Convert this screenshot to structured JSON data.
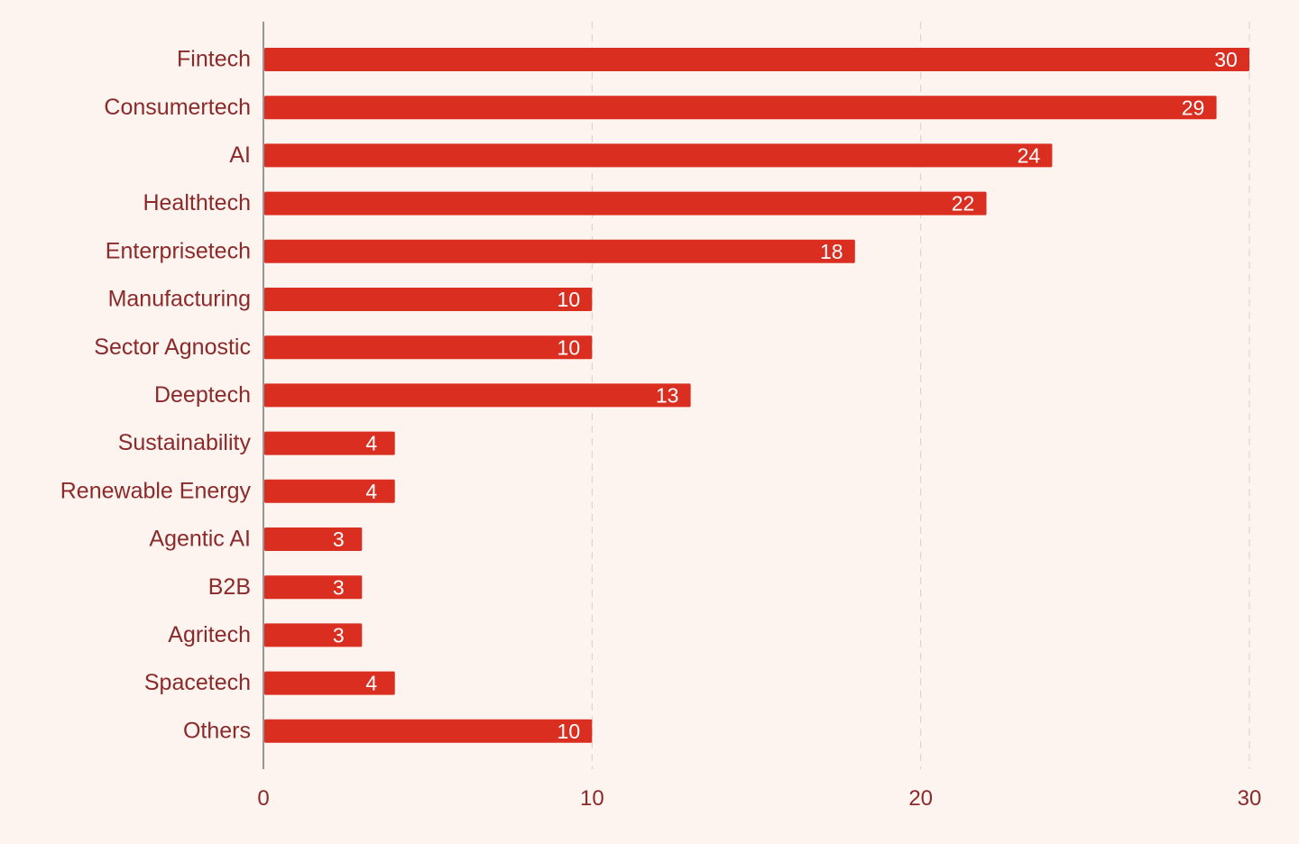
{
  "chart_data": {
    "type": "bar",
    "orientation": "horizontal",
    "categories": [
      "Fintech",
      "Consumertech",
      "AI",
      "Healthtech",
      "Enterprisetech",
      "Manufacturing",
      "Sector Agnostic",
      "Deeptech",
      "Sustainability",
      "Renewable Energy",
      "Agentic AI",
      "B2B",
      "Agritech",
      "Spacetech",
      "Others"
    ],
    "values": [
      30,
      29,
      24,
      22,
      18,
      10,
      10,
      13,
      4,
      4,
      3,
      3,
      3,
      4,
      10
    ],
    "xticks": [
      0,
      10,
      20,
      30
    ],
    "xlim": [
      0,
      30
    ],
    "title": "",
    "xlabel": "",
    "ylabel": "",
    "grid": true,
    "bar_color": "#d92e20",
    "label_color": "#8a2a2a",
    "value_label_color": "#ffffff",
    "background": "#fdf3ef"
  }
}
